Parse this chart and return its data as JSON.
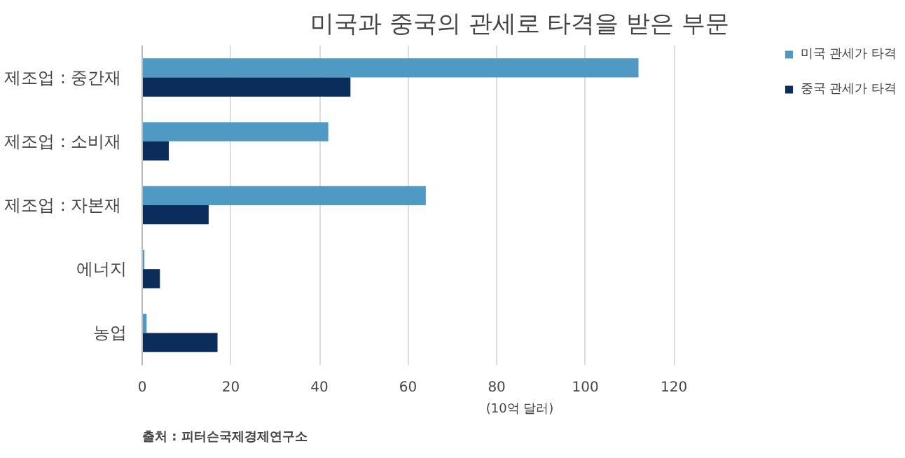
{
  "chart_data": {
    "type": "bar",
    "orientation": "horizontal",
    "title": "미국과 중국의 관세로 타격을 받은 부문",
    "xlabel": "(10억 달러)",
    "categories": [
      "제조업 :  중간재",
      "제조업 :  소비재",
      "제조업 :  자본재",
      "에너지",
      "농업"
    ],
    "series": [
      {
        "name": "미국 관세가 타격",
        "color": "#4f9ac5",
        "values": [
          112,
          42,
          64,
          0.5,
          1
        ]
      },
      {
        "name": "중국 관세가 타격",
        "color": "#0b2d5c",
        "values": [
          47,
          6,
          15,
          4,
          17
        ]
      }
    ],
    "xlim": [
      0,
      120
    ],
    "xticks": [
      0,
      20,
      40,
      60,
      80,
      100,
      120
    ],
    "grid": "x",
    "legend": "top right",
    "annotations": [
      "출처 :  피터슨국제경제연구소"
    ]
  }
}
